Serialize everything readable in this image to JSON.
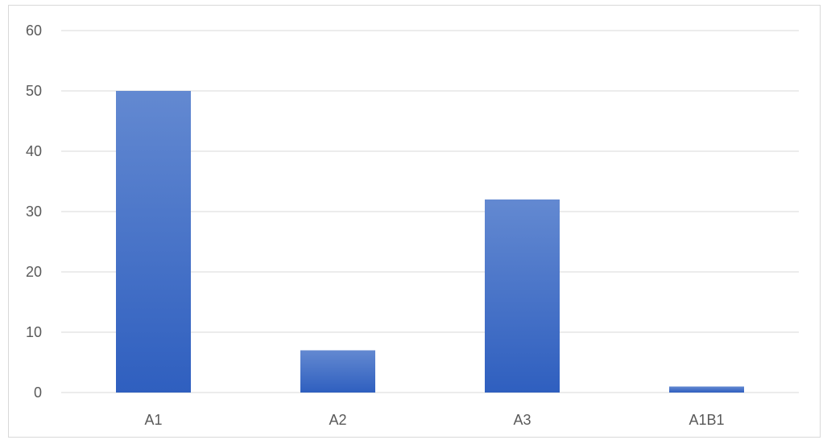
{
  "chart_data": {
    "type": "bar",
    "categories": [
      "A1",
      "A2",
      "A3",
      "A1B1"
    ],
    "values": [
      50,
      7,
      32,
      1
    ],
    "title": "",
    "xlabel": "",
    "ylabel": "",
    "ylim": [
      0,
      60
    ],
    "yticks": [
      0,
      10,
      20,
      30,
      40,
      50,
      60
    ],
    "grid": true,
    "legend": "none",
    "colors": {
      "bar_top": "#6389d1",
      "bar_bottom": "#2f5fbf",
      "gridline": "#d9d9d9",
      "tick_text": "#595959"
    }
  }
}
